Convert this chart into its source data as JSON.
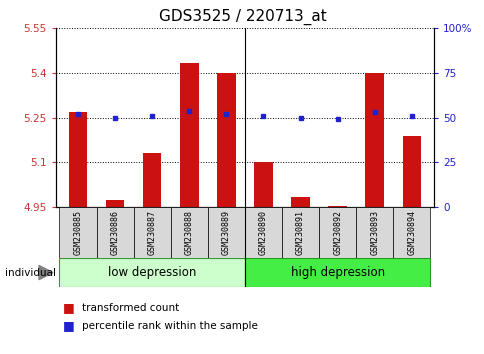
{
  "title": "GDS3525 / 220713_at",
  "samples": [
    "GSM230885",
    "GSM230886",
    "GSM230887",
    "GSM230888",
    "GSM230889",
    "GSM230890",
    "GSM230891",
    "GSM230892",
    "GSM230893",
    "GSM230894"
  ],
  "bar_values": [
    5.27,
    4.975,
    5.13,
    5.435,
    5.4,
    5.1,
    4.985,
    4.955,
    5.4,
    5.19
  ],
  "percentile_values": [
    52,
    50,
    51,
    54,
    52,
    51,
    50,
    49,
    53,
    51
  ],
  "bar_bottom": 4.95,
  "ylim_left": [
    4.95,
    5.55
  ],
  "ylim_right": [
    0,
    100
  ],
  "yticks_left": [
    4.95,
    5.1,
    5.25,
    5.4,
    5.55
  ],
  "ytick_labels_left": [
    "4.95",
    "5.1",
    "5.25",
    "5.4",
    "5.55"
  ],
  "yticks_right": [
    0,
    25,
    50,
    75,
    100
  ],
  "ytick_labels_right": [
    "0",
    "25",
    "50",
    "75",
    "100%"
  ],
  "bar_color": "#cc1111",
  "dot_color": "#2222cc",
  "group1_label": "low depression",
  "group2_label": "high depression",
  "group1_color": "#ccffcc",
  "group2_color": "#44ee44",
  "group1_indices": [
    0,
    1,
    2,
    3,
    4
  ],
  "group2_indices": [
    5,
    6,
    7,
    8,
    9
  ],
  "legend_bar_label": "transformed count",
  "legend_dot_label": "percentile rank within the sample",
  "individual_label": "individual",
  "separator_index": 4.5,
  "title_fontsize": 11,
  "axis_label_color_left": "#cc3333",
  "axis_label_color_right": "#2222cc",
  "sample_tick_area_color": "#d8d8d8",
  "group_label_fontsize": 8.5
}
